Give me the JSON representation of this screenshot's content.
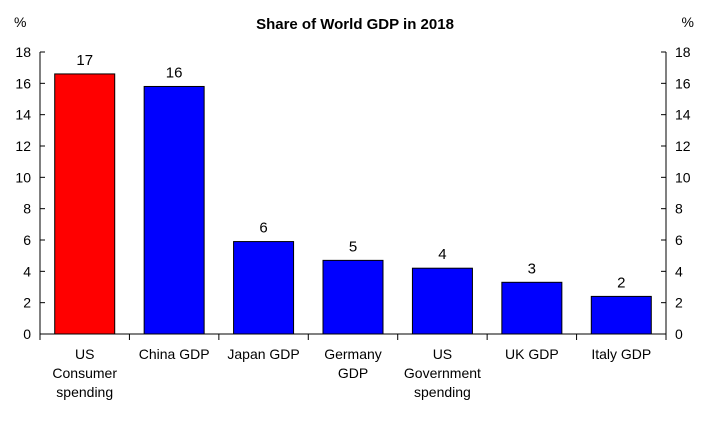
{
  "chart_data": {
    "type": "bar",
    "title": "Share of  World GDP in 2018",
    "ylabel_left": "%",
    "ylabel_right": "%",
    "ylim": [
      0,
      18
    ],
    "y_ticks": [
      0,
      2,
      4,
      6,
      8,
      10,
      12,
      14,
      16,
      18
    ],
    "grid": false,
    "categories": [
      [
        "US",
        "Consumer",
        "spending"
      ],
      [
        "China GDP"
      ],
      [
        "Japan GDP"
      ],
      [
        "Germany",
        "GDP"
      ],
      [
        "US",
        "Government",
        "spending"
      ],
      [
        "UK GDP"
      ],
      [
        "Italy GDP"
      ]
    ],
    "values": [
      16.6,
      15.8,
      5.9,
      4.7,
      4.2,
      3.3,
      2.4
    ],
    "data_labels": [
      "17",
      "16",
      "6",
      "5",
      "4",
      "3",
      "2"
    ],
    "colors": [
      "#ff0000",
      "#0000ff",
      "#0000ff",
      "#0000ff",
      "#0000ff",
      "#0000ff",
      "#0000ff"
    ]
  }
}
